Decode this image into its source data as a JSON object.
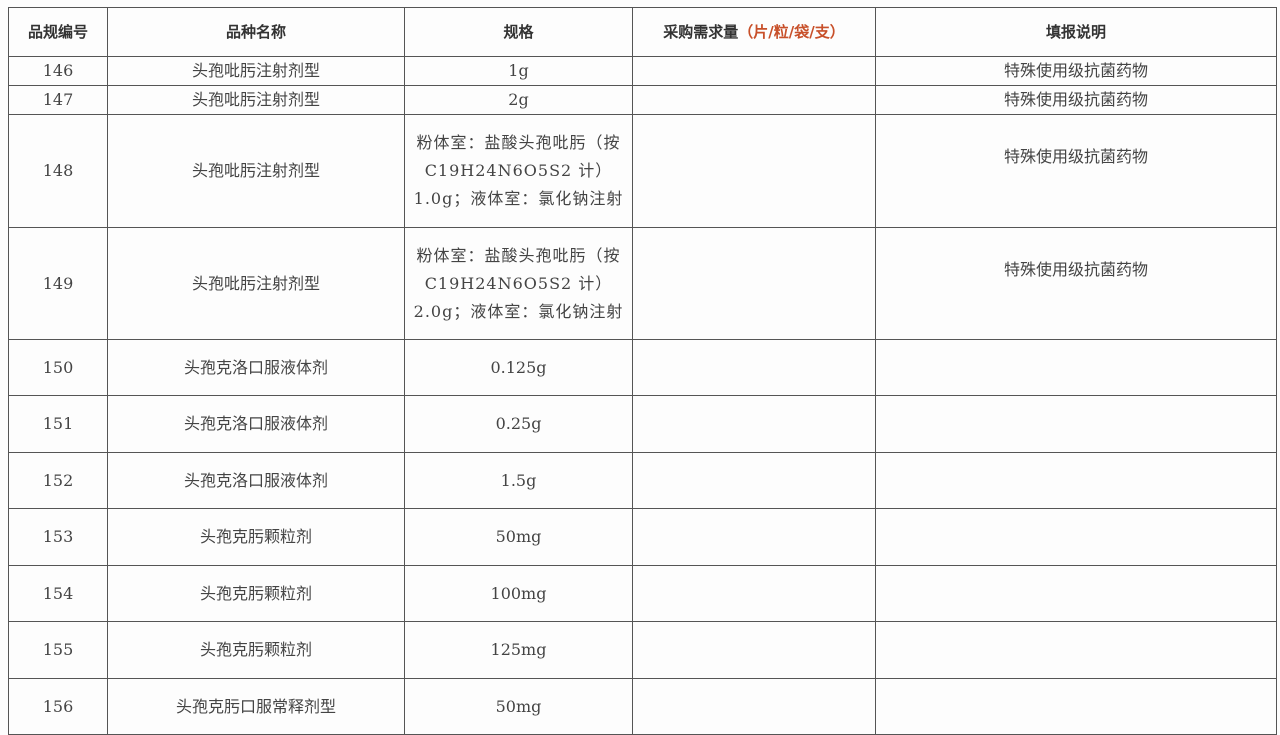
{
  "headers": {
    "id": "品规编号",
    "name": "品种名称",
    "spec": "规格",
    "demand": "采购需求量",
    "demand_unit": "（片/粒/袋/支）",
    "note": "填报说明"
  },
  "colors": {
    "unit_accent": "#c8502a",
    "border": "#555555"
  },
  "rows": [
    {
      "id": "146",
      "name": "头孢吡肟注射剂型",
      "spec": "1g",
      "demand": "",
      "note": "特殊使用级抗菌药物"
    },
    {
      "id": "147",
      "name": "头孢吡肟注射剂型",
      "spec": "2g",
      "demand": "",
      "note": "特殊使用级抗菌药物"
    },
    {
      "id": "148",
      "name": "头孢吡肟注射剂型",
      "spec": "粉体室：盐酸头孢吡肟（按 C19H24N6O5S2 计）1.0g；液体室：氯化钠注射",
      "demand": "",
      "note": "特殊使用级抗菌药物"
    },
    {
      "id": "149",
      "name": "头孢吡肟注射剂型",
      "spec": "粉体室：盐酸头孢吡肟（按 C19H24N6O5S2 计）2.0g；液体室：氯化钠注射",
      "demand": "",
      "note": "特殊使用级抗菌药物"
    },
    {
      "id": "150",
      "name": "头孢克洛口服液体剂",
      "spec": "0.125g",
      "demand": "",
      "note": ""
    },
    {
      "id": "151",
      "name": "头孢克洛口服液体剂",
      "spec": "0.25g",
      "demand": "",
      "note": ""
    },
    {
      "id": "152",
      "name": "头孢克洛口服液体剂",
      "spec": "1.5g",
      "demand": "",
      "note": ""
    },
    {
      "id": "153",
      "name": "头孢克肟颗粒剂",
      "spec": "50mg",
      "demand": "",
      "note": ""
    },
    {
      "id": "154",
      "name": "头孢克肟颗粒剂",
      "spec": "100mg",
      "demand": "",
      "note": ""
    },
    {
      "id": "155",
      "name": "头孢克肟颗粒剂",
      "spec": "125mg",
      "demand": "",
      "note": ""
    },
    {
      "id": "156",
      "name": "头孢克肟口服常释剂型",
      "spec": "50mg",
      "demand": "",
      "note": ""
    }
  ]
}
